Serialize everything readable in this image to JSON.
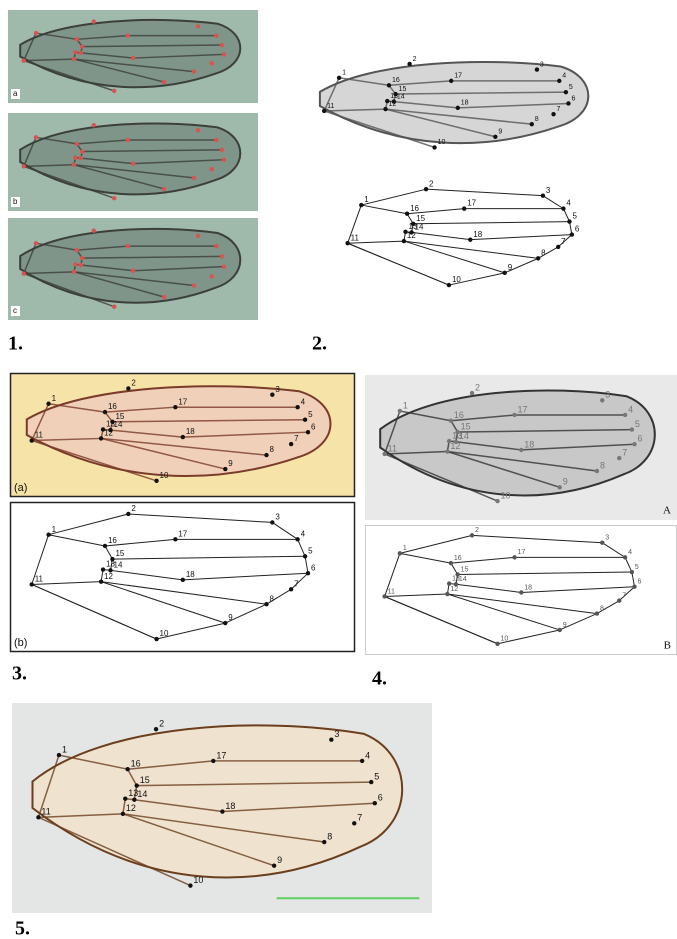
{
  "panels": [
    {
      "label": "1.",
      "subpanels": [
        {
          "label": "a"
        },
        {
          "label": "b"
        },
        {
          "label": "c"
        }
      ]
    },
    {
      "label": "2.",
      "subpanels": [
        {
          "landmarks": [
            "1",
            "2",
            "3",
            "4",
            "5",
            "6",
            "7",
            "8",
            "9",
            "10",
            "11",
            "12",
            "13",
            "14",
            "15",
            "16",
            "17",
            "18"
          ]
        },
        {
          "landmarks": [
            "1",
            "2",
            "3",
            "4",
            "5",
            "6",
            "7",
            "8",
            "9",
            "10",
            "11",
            "12",
            "13",
            "14",
            "15",
            "16",
            "17",
            "18"
          ]
        }
      ]
    },
    {
      "label": "3.",
      "subpanels": [
        {
          "label": "(a)",
          "landmarks": [
            "1",
            "2",
            "3",
            "4",
            "5",
            "6",
            "7",
            "8",
            "9",
            "10",
            "11",
            "12",
            "13",
            "14",
            "15",
            "16",
            "17",
            "18"
          ]
        },
        {
          "label": "(b)",
          "landmarks": [
            "1",
            "2",
            "3",
            "4",
            "5",
            "6",
            "7",
            "8",
            "9",
            "10",
            "11",
            "12",
            "13",
            "14",
            "15",
            "16",
            "17",
            "18"
          ]
        }
      ]
    },
    {
      "label": "4.",
      "subpanels": [
        {
          "label": "A",
          "landmarks": [
            "1",
            "2",
            "3",
            "4",
            "5",
            "6",
            "7",
            "8",
            "9",
            "10",
            "11",
            "12",
            "13",
            "14",
            "15",
            "16",
            "17",
            "18"
          ]
        },
        {
          "label": "B",
          "landmarks": [
            "1",
            "2",
            "3",
            "4",
            "5",
            "6",
            "7",
            "8",
            "9",
            "10",
            "11",
            "12",
            "13",
            "14",
            "15",
            "16",
            "17",
            "18"
          ]
        }
      ]
    },
    {
      "label": "5.",
      "subpanels": [
        {
          "landmarks": [
            "1",
            "2",
            "3",
            "4",
            "5",
            "6",
            "7",
            "8",
            "9",
            "10",
            "11",
            "12",
            "13",
            "14",
            "15",
            "16",
            "17",
            "18"
          ]
        }
      ]
    }
  ]
}
